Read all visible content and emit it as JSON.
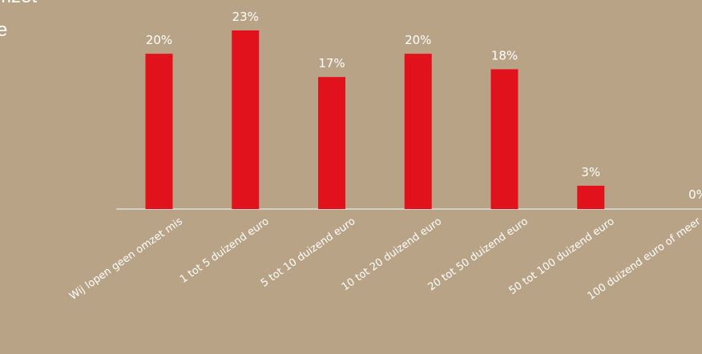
{
  "fragments": {
    "line1": "mzet",
    "line2": "e"
  },
  "colors": {
    "background": "#b9a386",
    "bar": "#e2121d",
    "axis": "#dddddd",
    "text": "#ffffff"
  },
  "chart_data": {
    "type": "bar",
    "categories": [
      "Wij lopen geen omzet mis",
      "1 tot 5 duizend euro",
      "5 tot 10 duizend euro",
      "10 tot 20 duizend euro",
      "20 tot 50 duizend euro",
      "50 tot 100 duizend euro",
      "100 duizend euro of meer"
    ],
    "values": [
      20,
      23,
      17,
      20,
      18,
      3,
      0
    ],
    "data_labels": [
      "20%",
      "23%",
      "17%",
      "20%",
      "18%",
      "3%",
      "0%"
    ],
    "unit": "%",
    "ylim": [
      0,
      23
    ],
    "grid": false,
    "legend": "none"
  }
}
